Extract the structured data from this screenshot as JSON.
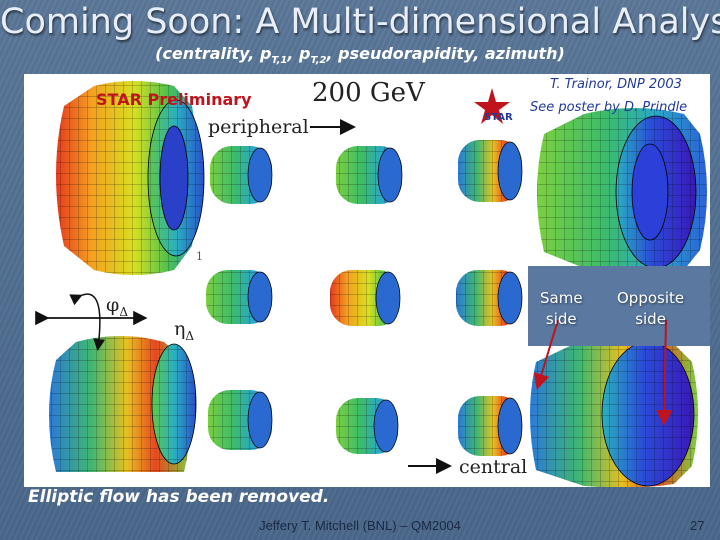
{
  "slide": {
    "title": "Coming Soon: A Multi-dimensional Analysis",
    "subtitle_main": "(centrality, p",
    "subtitle_sub1": "T,1",
    "subtitle_mid": ", p",
    "subtitle_sub2": "T,2",
    "subtitle_end": ", pseudorapidity, azimuth)",
    "note": "Elliptic flow has been removed.",
    "footer": "Jeffery T. Mitchell (BNL) – QM2004",
    "page_number": "27"
  },
  "figure": {
    "star_preliminary": "STAR Preliminary",
    "energy": "200 GeV",
    "peripheral": "peripheral",
    "central": "central",
    "credit": "T. Trainor, DNP 2003",
    "poster": "See poster by D. Prindle",
    "star_logo_text": "STAR",
    "phi_symbol": "φ",
    "phi_sub": "Δ",
    "eta_symbol": "η",
    "eta_sub": "Δ",
    "scale_mark": "1",
    "same_side": [
      "Same",
      "side"
    ],
    "opposite_side": [
      "Opposite",
      "side"
    ]
  },
  "colors": {
    "background": "#5277a0",
    "title": "#e8eef8",
    "star_preliminary": "#c0141c",
    "credit": "#213a9a",
    "arrow": "#c0141c"
  }
}
